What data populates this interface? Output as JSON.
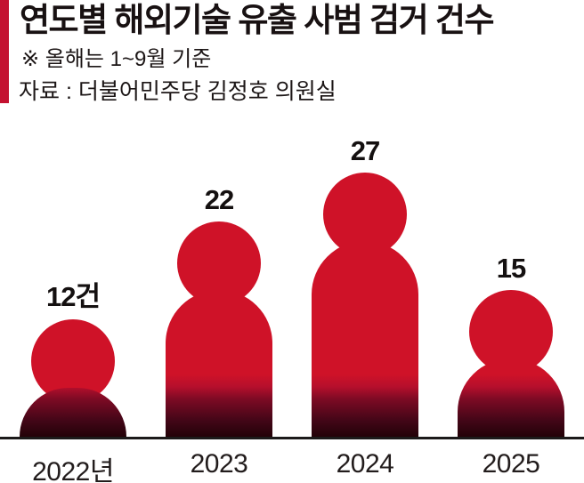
{
  "header": {
    "title": "연도별 해외기술 유출 사범 검거 건수",
    "note": "※ 올해는 1~9월 기준",
    "source": "자료 : 더불어민주당 김정호 의원실"
  },
  "chart_data": {
    "type": "bar",
    "subtype": "person-pictogram-bars",
    "title": "연도별 해외기술 유출 사범 검거 건수",
    "note": "※ 올해는 1~9월 기준",
    "source": "자료 : 더불어민주당 김정호 의원실",
    "categories": [
      "2022년",
      "2023",
      "2024",
      "2025"
    ],
    "values": [
      12,
      22,
      27,
      15
    ],
    "value_labels": [
      "12건",
      "22",
      "27",
      "15"
    ],
    "unit": "건",
    "ylim": [
      0,
      27
    ],
    "grid": false,
    "legend": "none",
    "colors": {
      "figure_red": "#cf1228",
      "figure_fade_mid": "#7c0a24",
      "figure_fade_dark": "#230208",
      "accent_bar": "#c41230",
      "axis_line": "#1c1a1a",
      "text": "#181112"
    }
  }
}
